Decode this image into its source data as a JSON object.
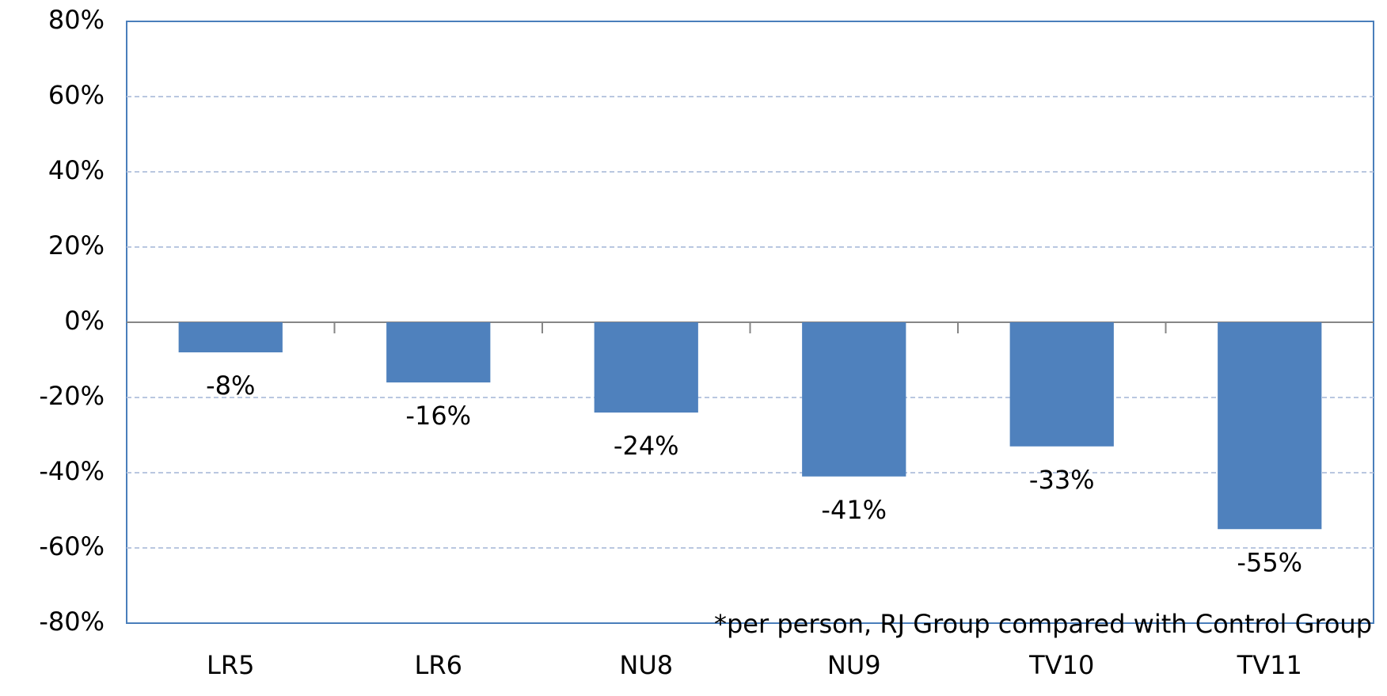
{
  "chart_data": {
    "type": "bar",
    "categories": [
      "LR5",
      "LR6",
      "NU8",
      "NU9",
      "TV10",
      "TV11"
    ],
    "values": [
      -8,
      -16,
      -24,
      -41,
      -33,
      -55
    ],
    "value_labels": [
      "-8%",
      "-16%",
      "-24%",
      "-41%",
      "-33%",
      "-55%"
    ],
    "color": "#4f81bd",
    "ylim": [
      -80,
      80
    ],
    "yticks": [
      {
        "value": -80,
        "label": "-80%"
      },
      {
        "value": -60,
        "label": "-60%"
      },
      {
        "value": -40,
        "label": "-40%"
      },
      {
        "value": -20,
        "label": "-20%"
      },
      {
        "value": 0,
        "label": "0%"
      },
      {
        "value": 20,
        "label": "20%"
      },
      {
        "value": 40,
        "label": "40%"
      },
      {
        "value": 60,
        "label": "60%"
      },
      {
        "value": 80,
        "label": "80%"
      }
    ],
    "grid": true,
    "annotation": "*per person, RJ Group compared with Control Group"
  }
}
